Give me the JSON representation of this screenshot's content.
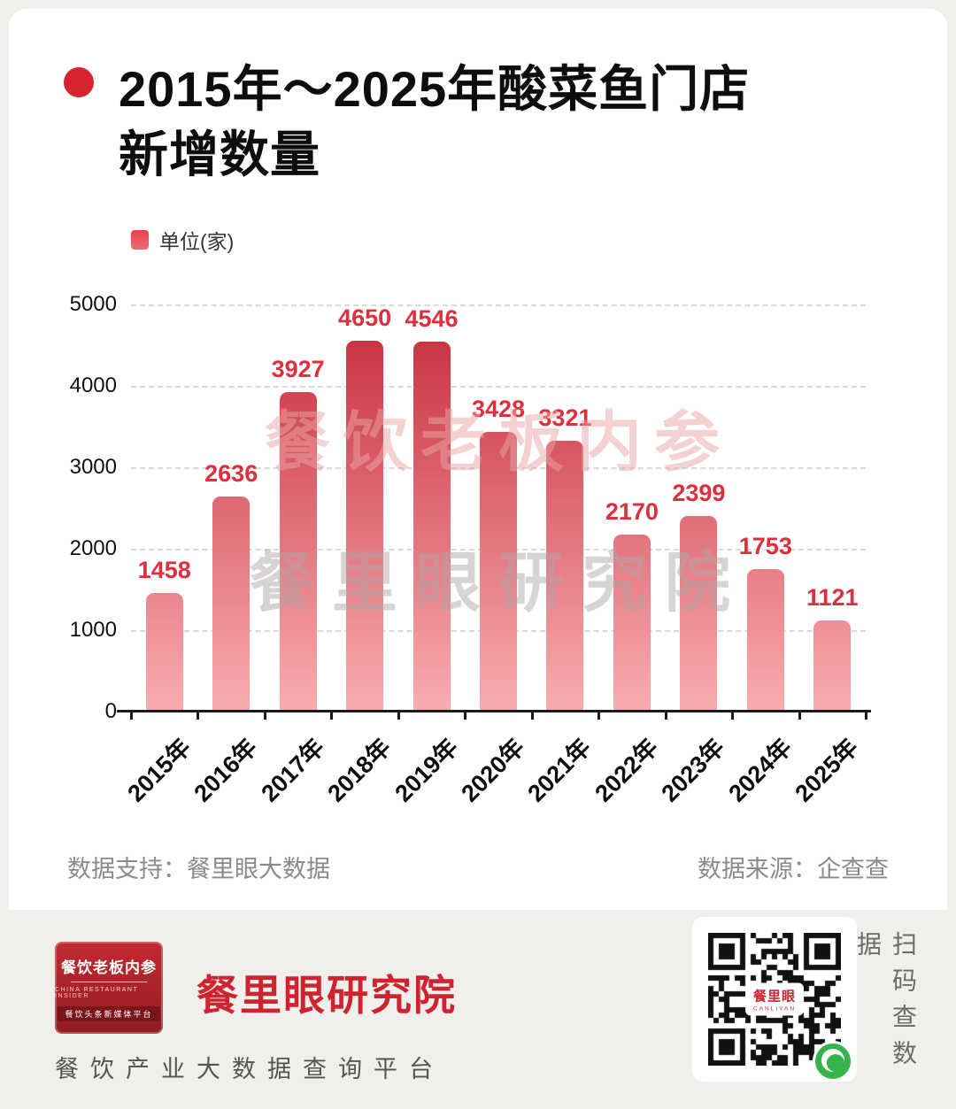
{
  "page": {
    "background": "#f1efeb",
    "card_background": "#ffffff",
    "accent": "#d8232f"
  },
  "header": {
    "title_line1": "2015年～2025年酸菜鱼门店",
    "title_line2": "新增数量"
  },
  "chart_data": {
    "type": "bar",
    "title": "2015年～2025年酸菜鱼门店新增数量",
    "legend": "单位(家)",
    "legend_position": "top-left",
    "categories": [
      "2015年",
      "2016年",
      "2017年",
      "2018年",
      "2019年",
      "2020年",
      "2021年",
      "2022年",
      "2023年",
      "2024年",
      "2025年"
    ],
    "values": [
      1458,
      2636,
      3927,
      4650,
      4546,
      3428,
      3321,
      2170,
      2399,
      1753,
      1121
    ],
    "ylim": [
      0,
      5000
    ],
    "yticks": [
      0,
      1000,
      2000,
      3000,
      4000,
      5000
    ],
    "grid": "horizontal-dashed",
    "bar_gradient_top": "#c6293a",
    "bar_gradient_bottom": "#f9adb1",
    "value_label_color": "#dd2f3d"
  },
  "watermark": {
    "line1": "餐饮老板内参",
    "line2": "餐里眼研究院"
  },
  "chart_footer": {
    "support": "数据支持：餐里眼大数据",
    "source": "数据来源：企查查"
  },
  "footer": {
    "logo_box": {
      "title": "餐饮老板内参",
      "subtitle": "CHINA RESTAURANT INSIDER",
      "tagline": "餐饮头条新媒体平台"
    },
    "brand": "餐里眼研究院",
    "tagline": "餐饮产业大数据查询平台",
    "qr": {
      "label": "餐里眼",
      "sub": "CANLIYAN"
    },
    "side_note": "扫码查数据"
  }
}
